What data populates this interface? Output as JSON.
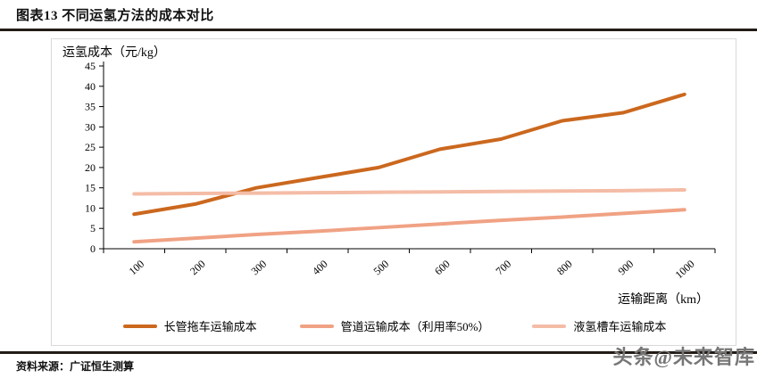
{
  "header": {
    "title": "图表13 不同运氢方法的成本对比"
  },
  "chart_data": {
    "type": "line",
    "ylabel": "运氢成本（元/kg）",
    "xlabel": "运输距离（km）",
    "categories": [
      100,
      200,
      300,
      400,
      500,
      600,
      700,
      800,
      900,
      1000
    ],
    "ylim": [
      0,
      45
    ],
    "ytick_step": 5,
    "grid": false,
    "legend_position": "bottom",
    "series": [
      {
        "name": "长管拖车运输成本",
        "color": "#CB681E",
        "values": [
          8.5,
          11,
          15,
          17.5,
          20,
          24.5,
          27,
          31.5,
          33.5,
          38
        ]
      },
      {
        "name": "管道运输成本（利用率50%）",
        "color": "#F0A284",
        "values": [
          1.7,
          2.6,
          3.5,
          4.3,
          5.2,
          6.1,
          7.0,
          7.8,
          8.7,
          9.6
        ]
      },
      {
        "name": "液氢槽车运输成本",
        "color": "#F4BCA6",
        "values": [
          13.5,
          13.6,
          13.7,
          13.8,
          13.9,
          14.0,
          14.1,
          14.2,
          14.3,
          14.5
        ]
      }
    ]
  },
  "footer": {
    "source": "资料来源：广证恒生测算"
  },
  "watermark": {
    "text": "头条@未来智库"
  },
  "colors": {
    "rule": "#231C16",
    "axis": "#000000",
    "chart_border": "#D9D9D9",
    "watermark": "#767676"
  }
}
